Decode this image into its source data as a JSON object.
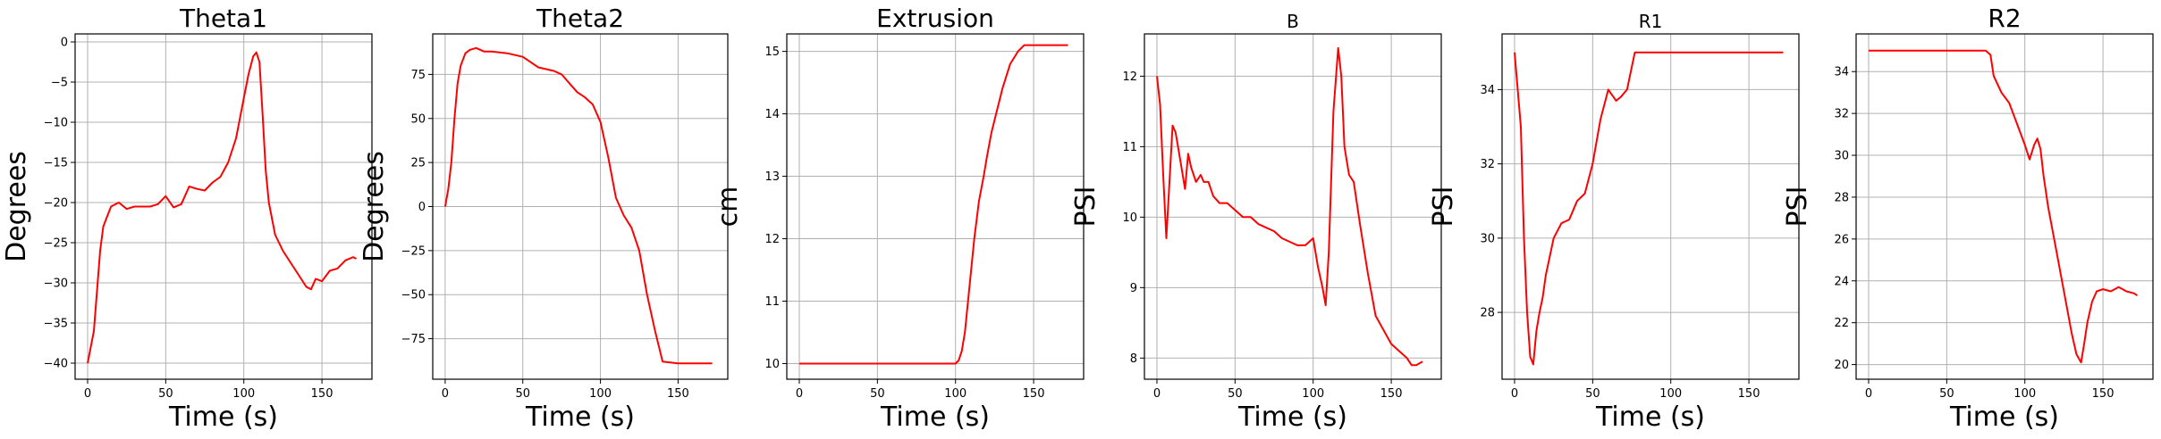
{
  "chart_data": [
    {
      "type": "line",
      "title": "Theta1",
      "title_size": "large",
      "xlabel": "Time (s)",
      "ylabel": "Degrees",
      "xlim": [
        -8,
        182
      ],
      "ylim": [
        -42,
        1
      ],
      "xticks": [
        0,
        50,
        100,
        150
      ],
      "yticks": [
        0,
        -5,
        -10,
        -15,
        -20,
        -25,
        -30,
        -35,
        -40
      ],
      "grid": true,
      "series": [
        {
          "color": "#ff0000",
          "x": [
            0,
            2,
            4,
            6,
            8,
            10,
            12,
            15,
            20,
            25,
            30,
            35,
            40,
            45,
            50,
            55,
            60,
            65,
            70,
            75,
            80,
            85,
            90,
            95,
            100,
            103,
            106,
            108,
            110,
            112,
            114,
            116,
            118,
            120,
            125,
            130,
            135,
            140,
            143,
            146,
            150,
            155,
            160,
            165,
            170,
            172
          ],
          "y": [
            -40,
            -38,
            -36,
            -31,
            -26,
            -23,
            -22,
            -20.5,
            -20,
            -20.8,
            -20.5,
            -20.5,
            -20.5,
            -20.2,
            -19.2,
            -20.6,
            -20.2,
            -18,
            -18.3,
            -18.5,
            -17.5,
            -16.8,
            -15,
            -12,
            -7,
            -4,
            -1.8,
            -1.3,
            -2.5,
            -9,
            -16,
            -20,
            -22,
            -24,
            -26,
            -27.5,
            -29,
            -30.5,
            -30.8,
            -29.5,
            -29.8,
            -28.5,
            -28.2,
            -27.2,
            -26.8,
            -27
          ]
        }
      ]
    },
    {
      "type": "line",
      "title": "Theta2",
      "title_size": "large",
      "xlabel": "Time (s)",
      "ylabel": "Degrees",
      "xlim": [
        -8,
        182
      ],
      "ylim": [
        -98,
        98
      ],
      "xticks": [
        0,
        50,
        100,
        150
      ],
      "yticks": [
        75,
        50,
        25,
        0,
        -25,
        -50,
        -75
      ],
      "grid": true,
      "series": [
        {
          "color": "#ff0000",
          "x": [
            0,
            2,
            4,
            6,
            8,
            10,
            13,
            16,
            20,
            25,
            30,
            40,
            50,
            55,
            60,
            70,
            75,
            80,
            85,
            90,
            95,
            100,
            105,
            110,
            115,
            120,
            125,
            130,
            135,
            140,
            150,
            160,
            170,
            172
          ],
          "y": [
            0,
            10,
            25,
            50,
            70,
            80,
            87,
            89,
            90,
            88,
            88,
            87,
            85,
            82,
            79,
            77,
            75,
            70,
            65,
            62,
            58,
            48,
            28,
            5,
            -5,
            -12,
            -25,
            -50,
            -70,
            -88,
            -89,
            -89,
            -89,
            -89
          ]
        }
      ]
    },
    {
      "type": "line",
      "title": "Extrusion",
      "title_size": "large",
      "xlabel": "Time (s)",
      "ylabel": "cm",
      "xlim": [
        -8,
        182
      ],
      "ylim": [
        9.75,
        15.28
      ],
      "xticks": [
        0,
        50,
        100,
        150
      ],
      "yticks": [
        10,
        11,
        12,
        13,
        14,
        15
      ],
      "grid": true,
      "series": [
        {
          "color": "#ff0000",
          "x": [
            0,
            50,
            100,
            102,
            104,
            106,
            108,
            110,
            112,
            115,
            118,
            120,
            123,
            126,
            130,
            135,
            140,
            144,
            150,
            160,
            170,
            172
          ],
          "y": [
            10,
            10,
            10,
            10.05,
            10.2,
            10.5,
            11,
            11.5,
            12,
            12.6,
            13.0,
            13.3,
            13.7,
            14.0,
            14.4,
            14.8,
            15.0,
            15.1,
            15.1,
            15.1,
            15.1,
            15.1
          ]
        }
      ]
    },
    {
      "type": "line",
      "title": "B",
      "title_size": "small",
      "xlabel": "Time (s)",
      "ylabel": "PSI",
      "xlim": [
        -8,
        182
      ],
      "ylim": [
        7.7,
        12.6
      ],
      "xticks": [
        0,
        50,
        100,
        150
      ],
      "yticks": [
        8,
        9,
        10,
        11,
        12
      ],
      "grid": true,
      "series": [
        {
          "color": "#ff0000",
          "x": [
            0,
            2,
            4,
            6,
            8,
            10,
            12,
            15,
            18,
            20,
            22,
            25,
            28,
            30,
            33,
            36,
            40,
            45,
            50,
            55,
            60,
            65,
            70,
            75,
            80,
            85,
            90,
            95,
            100,
            103,
            106,
            108,
            110,
            113,
            116,
            118,
            120,
            123,
            126,
            130,
            135,
            140,
            145,
            150,
            155,
            160,
            163,
            166,
            170
          ],
          "y": [
            12,
            11.6,
            10.6,
            9.7,
            10.5,
            11.3,
            11.2,
            10.8,
            10.4,
            10.9,
            10.7,
            10.5,
            10.6,
            10.5,
            10.5,
            10.3,
            10.2,
            10.2,
            10.1,
            10.0,
            10.0,
            9.9,
            9.85,
            9.8,
            9.7,
            9.65,
            9.6,
            9.6,
            9.7,
            9.3,
            9.0,
            8.75,
            9.5,
            11.5,
            12.4,
            12.0,
            11.0,
            10.6,
            10.5,
            9.9,
            9.2,
            8.6,
            8.4,
            8.2,
            8.1,
            8.0,
            7.9,
            7.9,
            7.95
          ]
        }
      ]
    },
    {
      "type": "line",
      "title": "R1",
      "title_size": "small",
      "xlabel": "Time (s)",
      "ylabel": "PSI",
      "xlim": [
        -8,
        182
      ],
      "ylim": [
        26.2,
        35.5
      ],
      "xticks": [
        0,
        50,
        100,
        150
      ],
      "yticks": [
        28,
        30,
        32,
        34
      ],
      "grid": true,
      "series": [
        {
          "color": "#ff0000",
          "x": [
            0,
            2,
            4,
            6,
            8,
            10,
            12,
            14,
            16,
            18,
            20,
            25,
            30,
            35,
            40,
            45,
            50,
            55,
            60,
            65,
            68,
            72,
            75,
            77,
            80,
            100,
            150,
            172
          ],
          "y": [
            35,
            34,
            33,
            30,
            28,
            26.8,
            26.6,
            27.5,
            28,
            28.4,
            29,
            30,
            30.4,
            30.5,
            31,
            31.2,
            32,
            33.2,
            34,
            33.7,
            33.8,
            34,
            34.6,
            35,
            35,
            35,
            35,
            35
          ]
        }
      ]
    },
    {
      "type": "line",
      "title": "R2",
      "title_size": "large",
      "xlabel": "Time (s)",
      "ylabel": "PSI",
      "xlim": [
        -8,
        182
      ],
      "ylim": [
        19.3,
        35.8
      ],
      "xticks": [
        0,
        50,
        100,
        150
      ],
      "yticks": [
        20,
        22,
        24,
        26,
        28,
        30,
        32,
        34
      ],
      "grid": true,
      "series": [
        {
          "color": "#ff0000",
          "x": [
            0,
            20,
            40,
            60,
            70,
            75,
            78,
            80,
            85,
            90,
            95,
            100,
            103,
            106,
            108,
            110,
            112,
            115,
            120,
            125,
            130,
            133,
            136,
            138,
            140,
            143,
            146,
            150,
            155,
            160,
            165,
            170,
            172
          ],
          "y": [
            35,
            35,
            35,
            35,
            35,
            35,
            34.8,
            33.8,
            33.0,
            32.5,
            31.5,
            30.5,
            29.8,
            30.5,
            30.8,
            30.3,
            29.0,
            27.5,
            25.5,
            23.5,
            21.5,
            20.5,
            20.1,
            21.0,
            22.0,
            23.0,
            23.5,
            23.6,
            23.5,
            23.7,
            23.5,
            23.4,
            23.3
          ]
        }
      ]
    }
  ]
}
